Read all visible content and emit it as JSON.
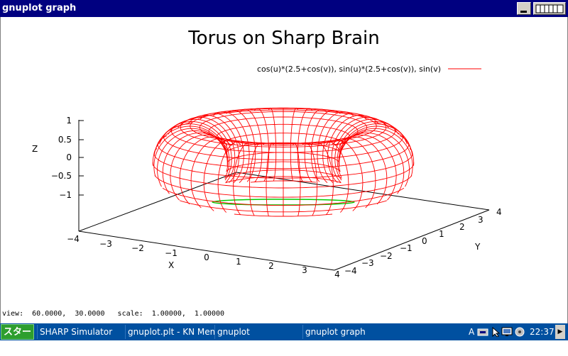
{
  "window": {
    "title": "gnuplot graph"
  },
  "plot": {
    "title": "Torus on Sharp Brain",
    "legend_label": "cos(u)*(2.5+cos(v)),  sin(u)*(2.5+cos(v)),  sin(v)",
    "series_color": "#ff0000",
    "base_color": "#00cc00",
    "z_axis_label": "Z",
    "x_axis_label": "X",
    "y_axis_label": "Y",
    "z_ticks": [
      "1",
      "0.5",
      "0",
      "−0.5",
      "−1"
    ],
    "x_ticks": [
      "−4",
      "−3",
      "−2",
      "−1",
      "0",
      "1",
      "2",
      "3",
      "4"
    ],
    "y_ticks": [
      "−4",
      "−3",
      "−2",
      "−1",
      "0",
      "1",
      "2",
      "3",
      "4"
    ],
    "view_status": "view:  60.0000,  30.0000   scale:  1.00000,  1.00000"
  },
  "taskbar": {
    "start_label": "スタート",
    "tasks": [
      "SHARP Simulator",
      "gnuplot.plt - KN Memo",
      "gnuplot",
      "gnuplot graph"
    ],
    "clock": "22:37",
    "tray_a": "A"
  }
}
